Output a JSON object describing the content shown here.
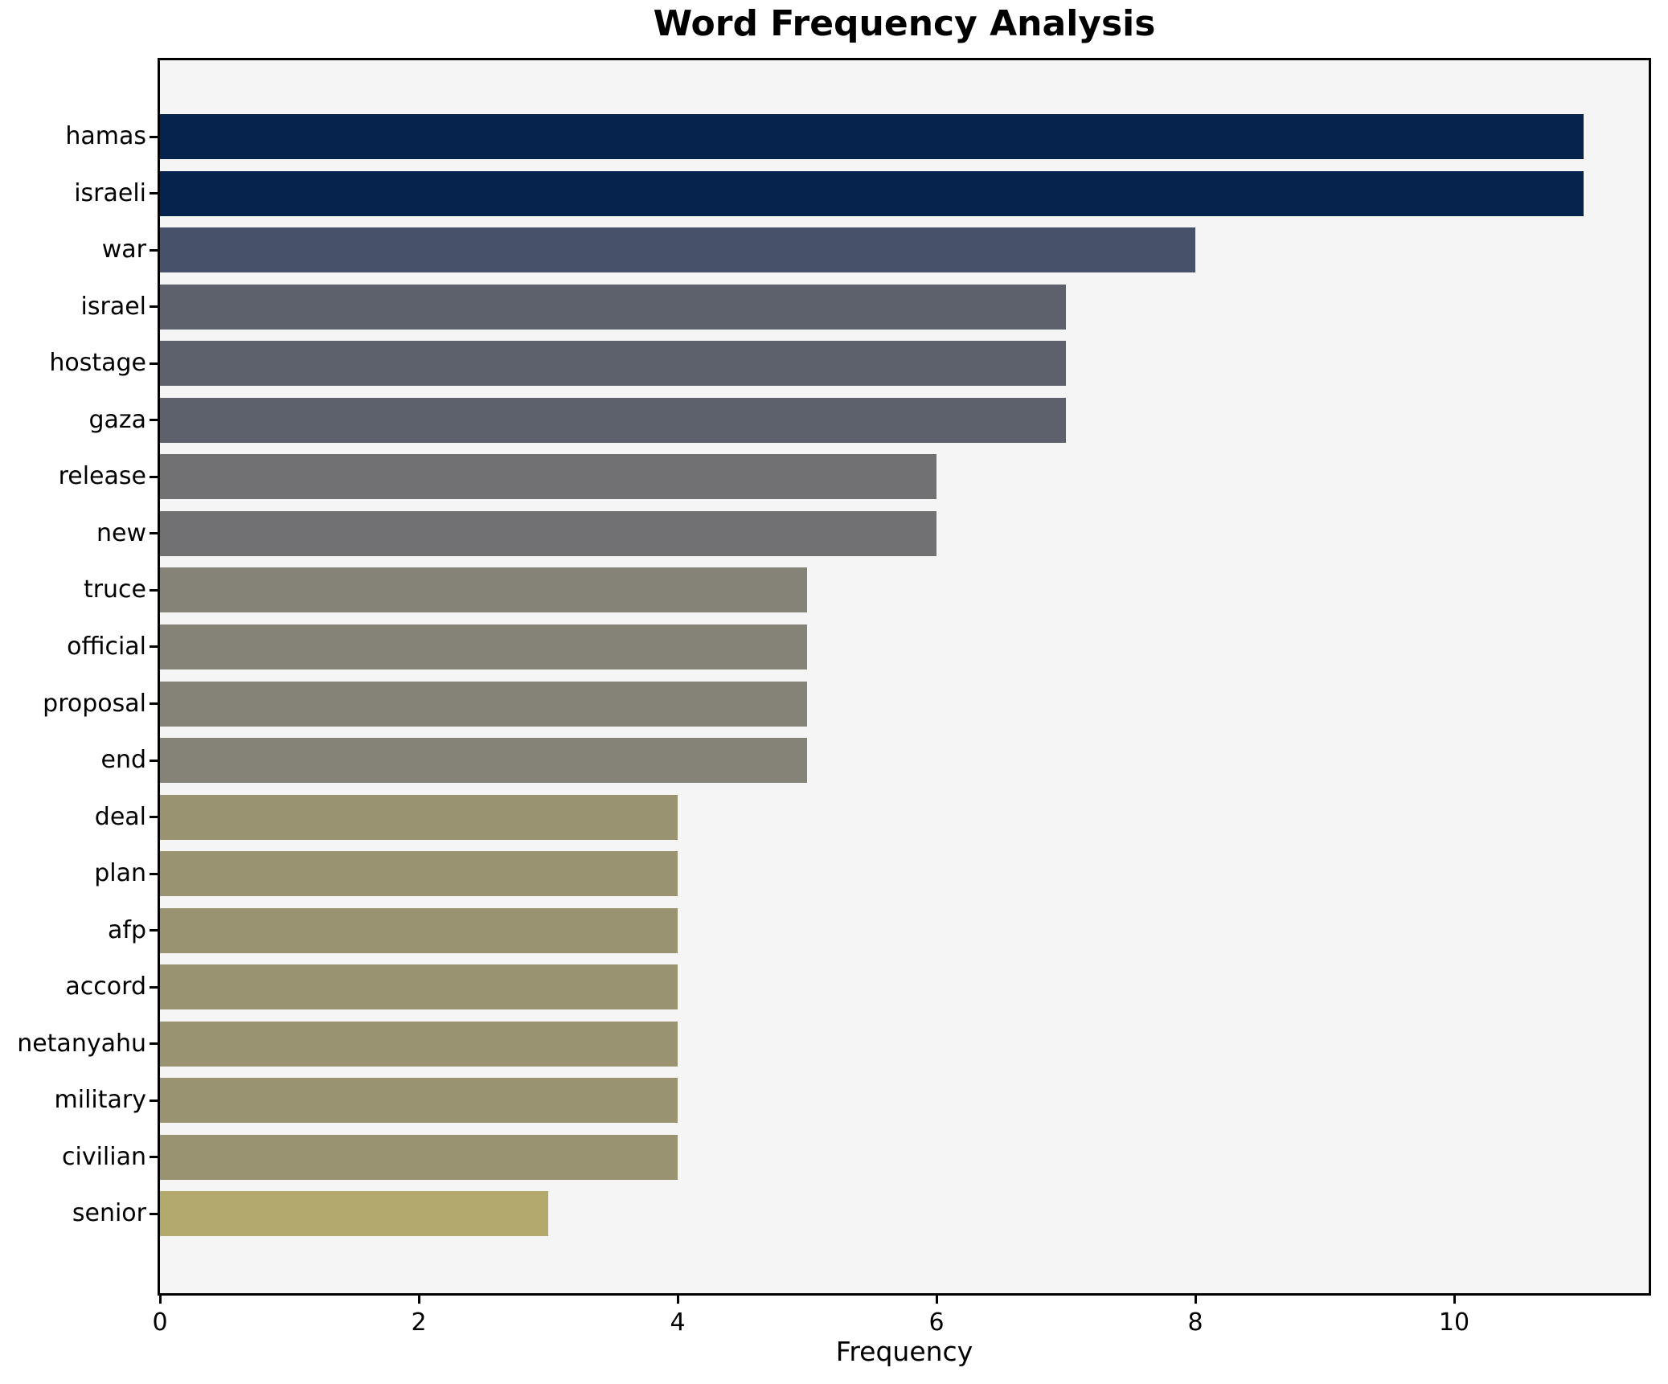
{
  "chart_data": {
    "type": "bar",
    "orientation": "horizontal",
    "title": "Word Frequency Analysis",
    "xlabel": "Frequency",
    "ylabel": "",
    "categories": [
      "hamas",
      "israeli",
      "war",
      "israel",
      "hostage",
      "gaza",
      "release",
      "new",
      "truce",
      "official",
      "proposal",
      "end",
      "deal",
      "plan",
      "afp",
      "accord",
      "netanyahu",
      "military",
      "civilian",
      "senior"
    ],
    "values": [
      11,
      11,
      8,
      7,
      7,
      7,
      6,
      6,
      5,
      5,
      5,
      5,
      4,
      4,
      4,
      4,
      4,
      4,
      4,
      3
    ],
    "bar_colors": [
      "#05234C",
      "#05234C",
      "#475169",
      "#5D616C",
      "#5D616C",
      "#5D616C",
      "#717174",
      "#717174",
      "#858377",
      "#858377",
      "#858377",
      "#858377",
      "#9A9372",
      "#9A9372",
      "#9A9372",
      "#9A9372",
      "#9A9372",
      "#9A9372",
      "#9A9372",
      "#B3A96C"
    ],
    "xticks": [
      0,
      2,
      4,
      6,
      8,
      10
    ],
    "xlim": [
      0,
      11.55
    ],
    "grid": false,
    "legend": false,
    "plot_background": "#f5f5f6",
    "spine_color": "#000000"
  }
}
